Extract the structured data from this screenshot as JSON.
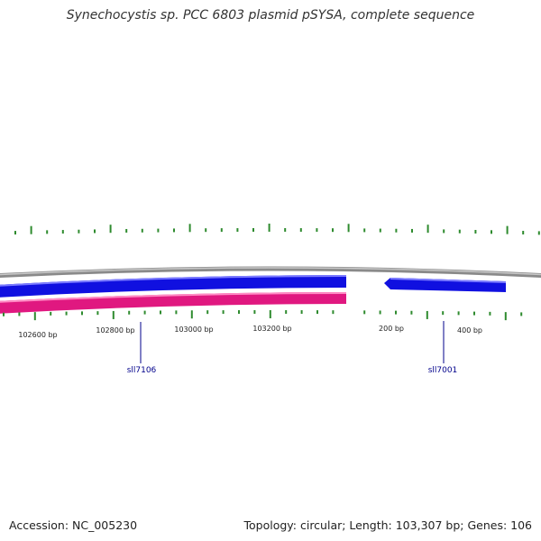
{
  "title": "Synechocystis sp. PCC 6803 plasmid pSYSA, complete sequence",
  "accession": "Accession: NC_005230",
  "summary": "Topology: circular; Length: 103,307 bp; Genes: 106",
  "colors": {
    "backbone": "#8a8a8a",
    "forward_gene": "#1010e0",
    "reverse_gene": "#e01880",
    "tick": "#2e8b2e",
    "gene_label": "#00008b",
    "text": "#222222"
  },
  "position_labels": [
    "102600 bp",
    "102800 bp",
    "103000 bp",
    "103200 bp",
    "200 bp",
    "400 bp"
  ],
  "genes": [
    {
      "name": "sll7106",
      "strand": "-"
    },
    {
      "name": "sll7001",
      "strand": "+"
    }
  ]
}
